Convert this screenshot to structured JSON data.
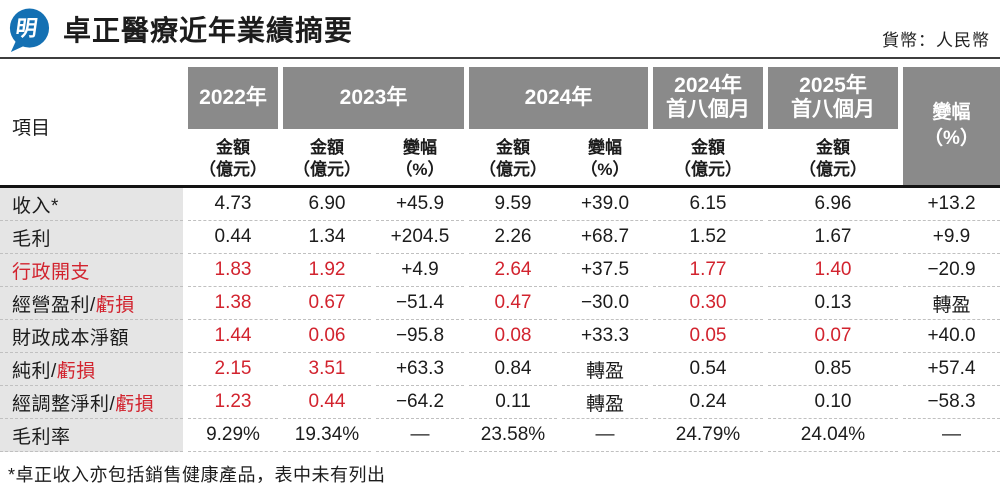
{
  "header": {
    "title": "卓正醫療近年業績摘要",
    "currency_note": "貨幣：人民幣",
    "logo_char": "明"
  },
  "colors": {
    "accent_red": "#d2232e",
    "header_gray": "#8a8a8a",
    "label_bg": "#e5e5e5",
    "logo_blue": "#1470b3"
  },
  "chart_data": {
    "type": "table",
    "title": "卓正醫療近年業績摘要",
    "unit": "億元人民幣",
    "item_col_header": "項目",
    "year_groups": [
      {
        "label": "2022年",
        "cols": 1
      },
      {
        "label": "2023年",
        "cols": 2
      },
      {
        "label": "2024年",
        "cols": 2
      },
      {
        "label": "2024年\n首八個月",
        "cols": 1
      },
      {
        "label": "2025年\n首八個月",
        "cols": 1
      }
    ],
    "sub_headers": [
      "金額\n（億元）",
      "金額\n（億元）",
      "變幅\n（%）",
      "金額\n（億元）",
      "變幅\n（%）",
      "金額\n（億元）",
      "金額\n（億元）"
    ],
    "change_col_header": "變幅\n（%）",
    "rows": [
      {
        "label": "收入*",
        "label_red": "",
        "cells": [
          {
            "t": "4.73"
          },
          {
            "t": "6.90"
          },
          {
            "t": "+45.9"
          },
          {
            "t": "9.59"
          },
          {
            "t": "+39.0"
          },
          {
            "t": "6.15"
          },
          {
            "t": "6.96"
          },
          {
            "t": "+13.2"
          }
        ]
      },
      {
        "label": "毛利",
        "label_red": "",
        "cells": [
          {
            "t": "0.44"
          },
          {
            "t": "1.34"
          },
          {
            "t": "+204.5"
          },
          {
            "t": "2.26"
          },
          {
            "t": "+68.7"
          },
          {
            "t": "1.52"
          },
          {
            "t": "1.67"
          },
          {
            "t": "+9.9"
          }
        ]
      },
      {
        "label": "",
        "label_red": "行政開支",
        "cells": [
          {
            "t": "1.83",
            "r": true
          },
          {
            "t": "1.92",
            "r": true
          },
          {
            "t": "+4.9"
          },
          {
            "t": "2.64",
            "r": true
          },
          {
            "t": "+37.5"
          },
          {
            "t": "1.77",
            "r": true
          },
          {
            "t": "1.40",
            "r": true
          },
          {
            "t": "−20.9"
          }
        ]
      },
      {
        "label": "經營盈利/",
        "label_red": "虧損",
        "cells": [
          {
            "t": "1.38",
            "r": true
          },
          {
            "t": "0.67",
            "r": true
          },
          {
            "t": "−51.4"
          },
          {
            "t": "0.47",
            "r": true
          },
          {
            "t": "−30.0"
          },
          {
            "t": "0.30",
            "r": true
          },
          {
            "t": "0.13"
          },
          {
            "t": "轉盈"
          }
        ]
      },
      {
        "label": "財政成本淨額",
        "label_red": "",
        "cells": [
          {
            "t": "1.44",
            "r": true
          },
          {
            "t": "0.06",
            "r": true
          },
          {
            "t": "−95.8"
          },
          {
            "t": "0.08",
            "r": true
          },
          {
            "t": "+33.3"
          },
          {
            "t": "0.05",
            "r": true
          },
          {
            "t": "0.07",
            "r": true
          },
          {
            "t": "+40.0"
          }
        ]
      },
      {
        "label": "純利/",
        "label_red": "虧損",
        "cells": [
          {
            "t": "2.15",
            "r": true
          },
          {
            "t": "3.51",
            "r": true
          },
          {
            "t": "+63.3"
          },
          {
            "t": "0.84"
          },
          {
            "t": "轉盈"
          },
          {
            "t": "0.54"
          },
          {
            "t": "0.85"
          },
          {
            "t": "+57.4"
          }
        ]
      },
      {
        "label": "經調整淨利/",
        "label_red": "虧損",
        "cells": [
          {
            "t": "1.23",
            "r": true
          },
          {
            "t": "0.44",
            "r": true
          },
          {
            "t": "−64.2"
          },
          {
            "t": "0.11"
          },
          {
            "t": "轉盈"
          },
          {
            "t": "0.24"
          },
          {
            "t": "0.10"
          },
          {
            "t": "−58.3"
          }
        ]
      },
      {
        "label": "毛利率",
        "label_red": "",
        "cells": [
          {
            "t": "9.29%"
          },
          {
            "t": "19.34%"
          },
          {
            "t": "—"
          },
          {
            "t": "23.58%"
          },
          {
            "t": "—"
          },
          {
            "t": "24.79%"
          },
          {
            "t": "24.04%"
          },
          {
            "t": "—"
          }
        ]
      }
    ]
  },
  "footnote": "*卓正收入亦包括銷售健康產品，表中未有列出"
}
